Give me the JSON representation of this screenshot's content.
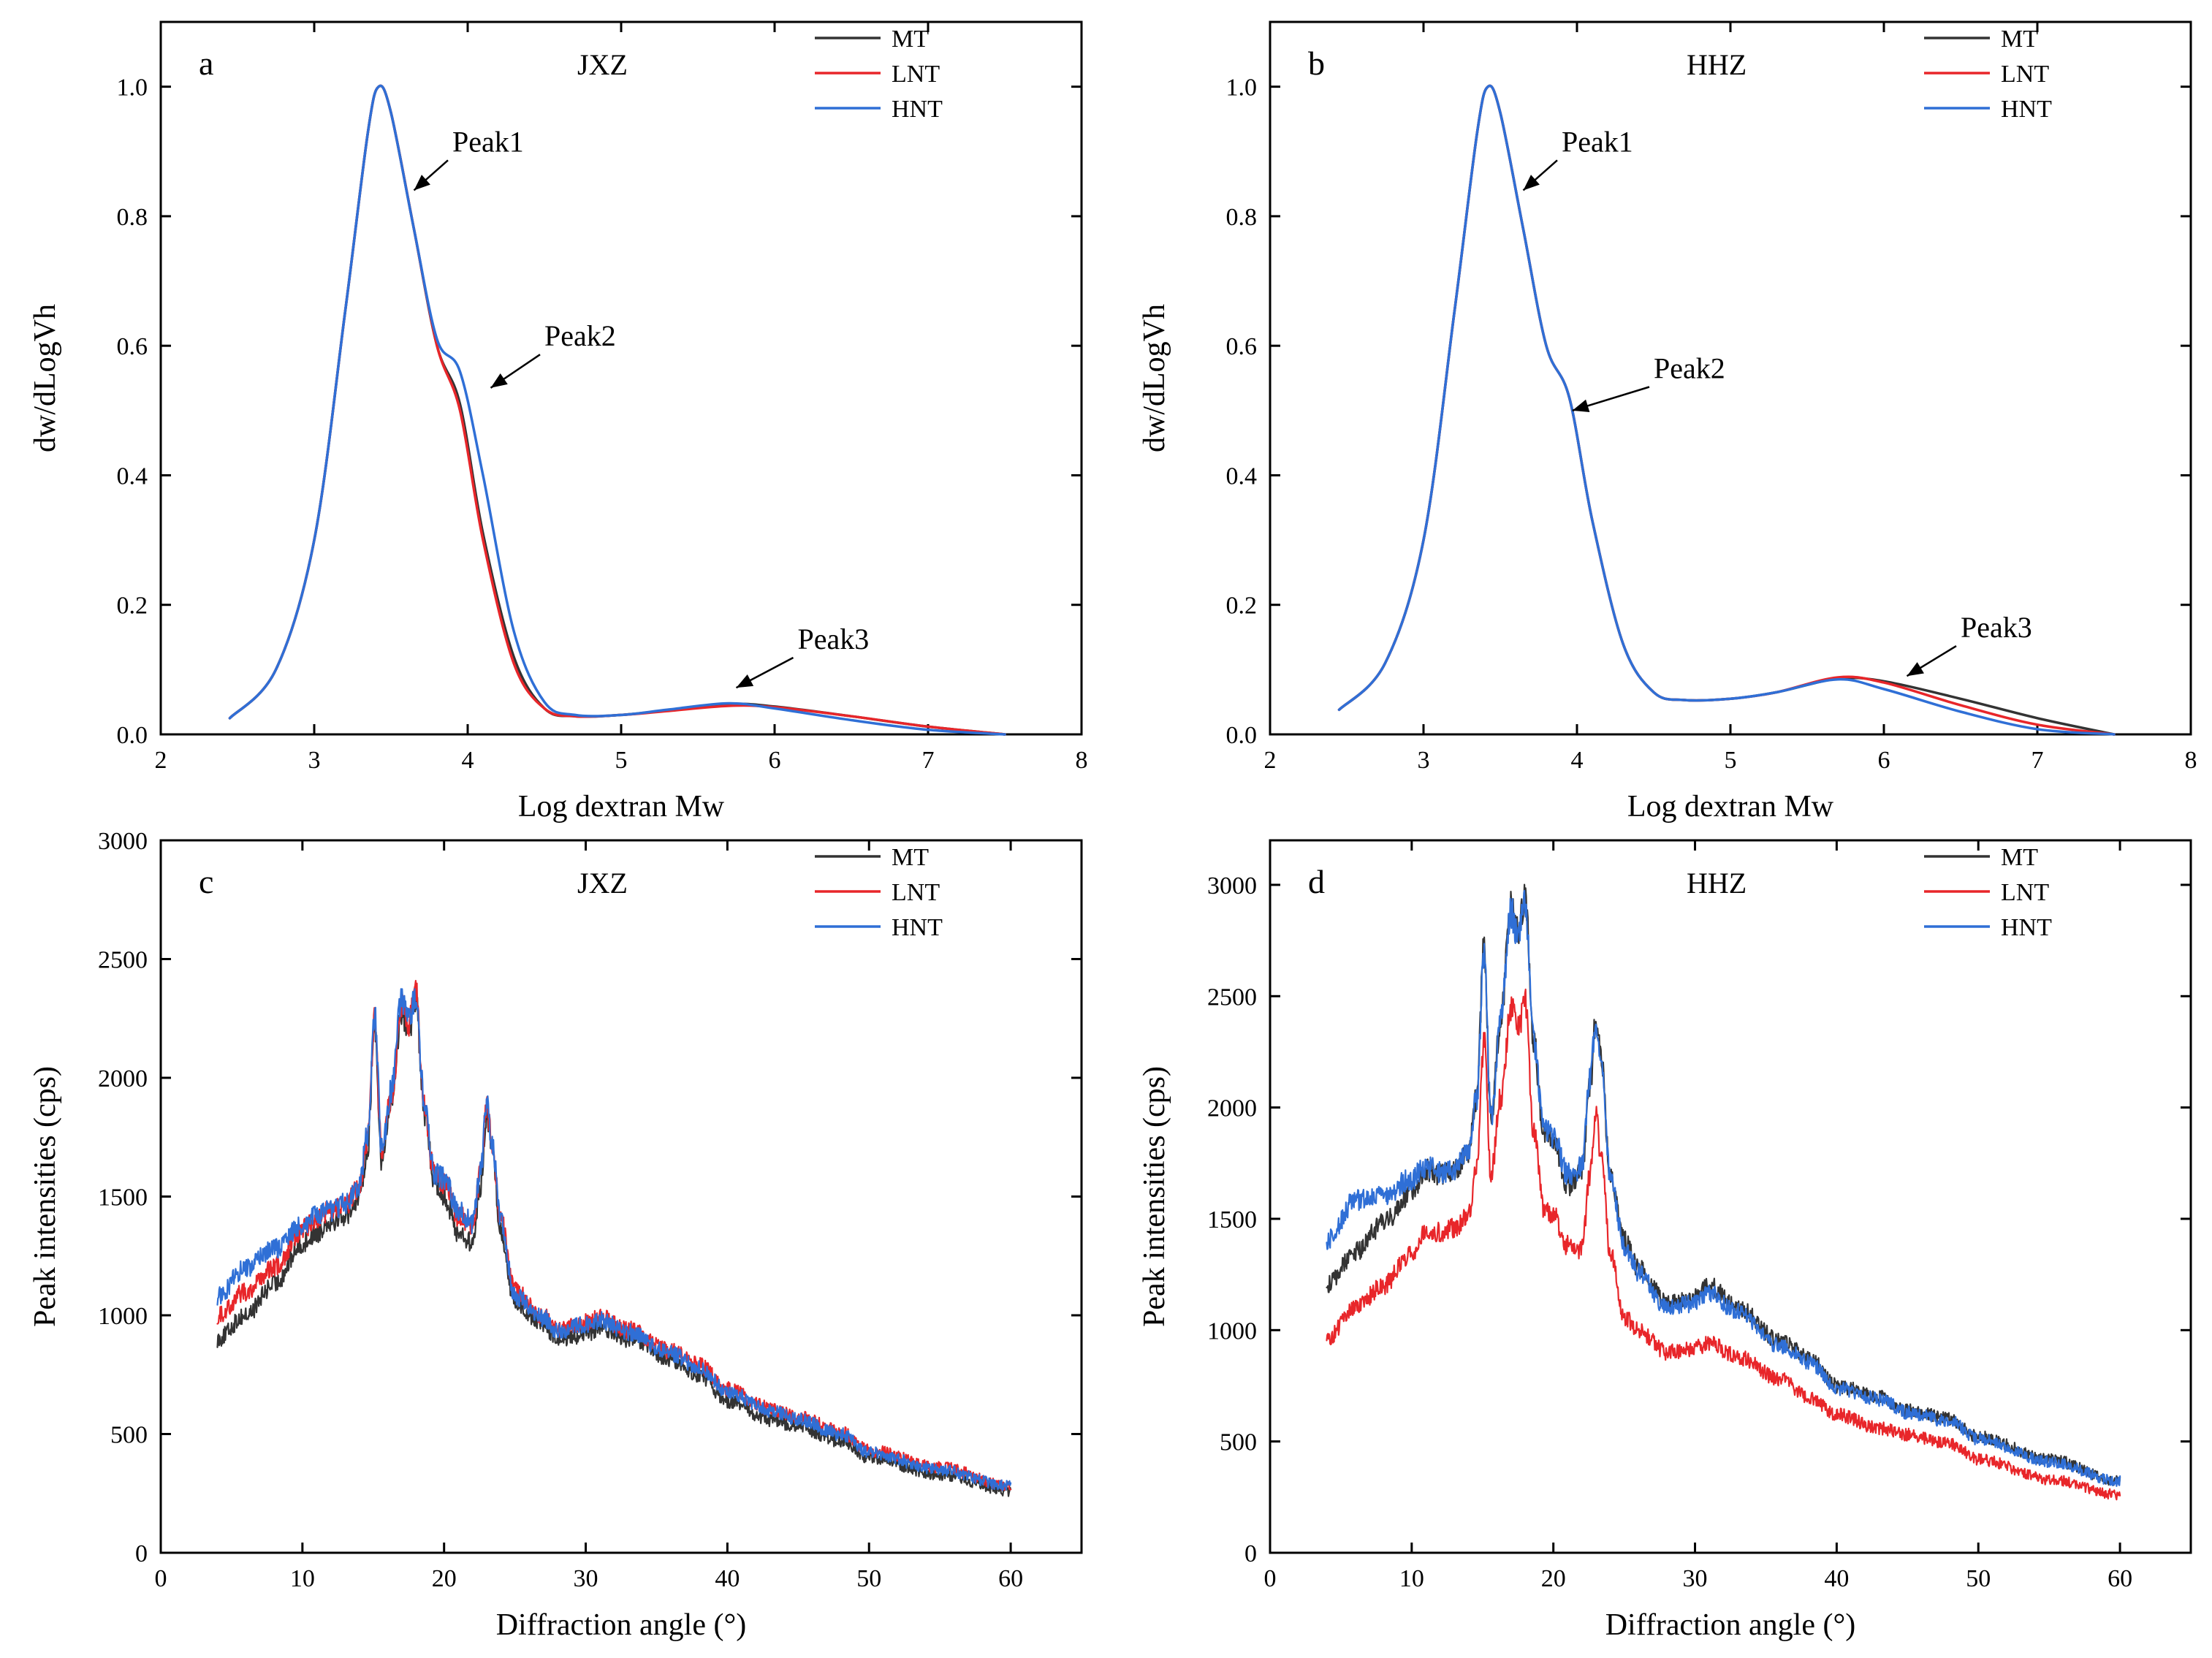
{
  "figure": {
    "description_colors": {
      "MT": "#333333",
      "LNT": "#e8262a",
      "HNT": "#2f6fd6"
    }
  },
  "chart_data": [
    {
      "id": "a",
      "type": "line",
      "panel_label": "a",
      "title": "JXZ",
      "xlabel": "Log dextran Mw",
      "ylabel": "dw/dLogVh",
      "xlim": [
        2,
        8
      ],
      "ylim": [
        0,
        1.1
      ],
      "xticks": [
        "2",
        "3",
        "4",
        "5",
        "6",
        "7",
        "8"
      ],
      "yticks": [
        "0.0",
        "0.2",
        "0.4",
        "0.6",
        "0.8",
        "1.0"
      ],
      "legend_position": "top-right",
      "series": [
        {
          "name": "MT",
          "color": "#333333",
          "x": [
            2.45,
            2.75,
            3.0,
            3.2,
            3.35,
            3.42,
            3.5,
            3.65,
            3.8,
            3.95,
            4.1,
            4.3,
            4.5,
            4.7,
            5.0,
            5.3,
            5.7,
            6.0,
            6.5,
            7.0,
            7.5
          ],
          "y": [
            0.025,
            0.1,
            0.3,
            0.65,
            0.93,
            1.0,
            0.96,
            0.78,
            0.6,
            0.51,
            0.31,
            0.12,
            0.04,
            0.028,
            0.03,
            0.037,
            0.047,
            0.043,
            0.028,
            0.012,
            0.0
          ]
        },
        {
          "name": "LNT",
          "color": "#e8262a",
          "x": [
            2.45,
            2.75,
            3.0,
            3.2,
            3.35,
            3.42,
            3.5,
            3.65,
            3.8,
            3.95,
            4.1,
            4.3,
            4.5,
            4.7,
            5.0,
            5.3,
            5.7,
            6.0,
            6.5,
            7.0,
            7.5
          ],
          "y": [
            0.025,
            0.1,
            0.3,
            0.65,
            0.93,
            1.0,
            0.96,
            0.78,
            0.6,
            0.5,
            0.3,
            0.11,
            0.04,
            0.028,
            0.03,
            0.036,
            0.044,
            0.042,
            0.028,
            0.012,
            0.0
          ]
        },
        {
          "name": "HNT",
          "color": "#2f6fd6",
          "x": [
            2.45,
            2.75,
            3.0,
            3.2,
            3.35,
            3.42,
            3.5,
            3.65,
            3.8,
            3.95,
            4.1,
            4.3,
            4.5,
            4.7,
            5.0,
            5.3,
            5.7,
            6.0,
            6.5,
            7.0,
            7.5
          ],
          "y": [
            0.025,
            0.1,
            0.3,
            0.65,
            0.93,
            1.0,
            0.96,
            0.78,
            0.61,
            0.56,
            0.4,
            0.16,
            0.05,
            0.03,
            0.03,
            0.038,
            0.048,
            0.04,
            0.022,
            0.007,
            0.0
          ]
        }
      ],
      "annotations": [
        {
          "text": "Peak1",
          "x": 3.9,
          "y": 0.9,
          "target_x": 3.65,
          "target_y": 0.84
        },
        {
          "text": "Peak2",
          "x": 4.5,
          "y": 0.6,
          "target_x": 4.15,
          "target_y": 0.535
        },
        {
          "text": "Peak3",
          "x": 6.15,
          "y": 0.132,
          "target_x": 5.75,
          "target_y": 0.072
        }
      ]
    },
    {
      "id": "b",
      "type": "line",
      "panel_label": "b",
      "title": "HHZ",
      "xlabel": "Log dextran Mw",
      "ylabel": "dw/dLogVh",
      "xlim": [
        2,
        8
      ],
      "ylim": [
        0,
        1.1
      ],
      "xticks": [
        "2",
        "3",
        "4",
        "5",
        "6",
        "7",
        "8"
      ],
      "yticks": [
        "0.0",
        "0.2",
        "0.4",
        "0.6",
        "0.8",
        "1.0"
      ],
      "legend_position": "top-right",
      "series": [
        {
          "name": "MT",
          "color": "#333333",
          "x": [
            2.45,
            2.75,
            3.0,
            3.2,
            3.35,
            3.42,
            3.5,
            3.65,
            3.8,
            3.95,
            4.1,
            4.3,
            4.5,
            4.7,
            5.0,
            5.3,
            5.7,
            6.0,
            6.5,
            7.0,
            7.5
          ],
          "y": [
            0.038,
            0.11,
            0.3,
            0.65,
            0.93,
            1.0,
            0.96,
            0.78,
            0.6,
            0.52,
            0.33,
            0.14,
            0.065,
            0.053,
            0.055,
            0.065,
            0.086,
            0.082,
            0.055,
            0.025,
            0.0
          ]
        },
        {
          "name": "LNT",
          "color": "#e8262a",
          "x": [
            2.45,
            2.75,
            3.0,
            3.2,
            3.35,
            3.42,
            3.5,
            3.65,
            3.8,
            3.95,
            4.1,
            4.3,
            4.5,
            4.7,
            5.0,
            5.3,
            5.7,
            6.0,
            6.5,
            7.0,
            7.5
          ],
          "y": [
            0.038,
            0.11,
            0.3,
            0.65,
            0.93,
            1.0,
            0.96,
            0.78,
            0.6,
            0.52,
            0.33,
            0.14,
            0.065,
            0.053,
            0.055,
            0.065,
            0.088,
            0.08,
            0.045,
            0.015,
            0.0
          ]
        },
        {
          "name": "HNT",
          "color": "#2f6fd6",
          "x": [
            2.45,
            2.75,
            3.0,
            3.2,
            3.35,
            3.42,
            3.5,
            3.65,
            3.8,
            3.95,
            4.1,
            4.3,
            4.5,
            4.7,
            5.0,
            5.3,
            5.7,
            6.0,
            6.5,
            7.0,
            7.5
          ],
          "y": [
            0.038,
            0.11,
            0.3,
            0.65,
            0.93,
            1.0,
            0.96,
            0.78,
            0.6,
            0.52,
            0.33,
            0.14,
            0.065,
            0.053,
            0.055,
            0.065,
            0.085,
            0.07,
            0.035,
            0.008,
            0.0
          ]
        }
      ],
      "annotations": [
        {
          "text": "Peak1",
          "x": 3.9,
          "y": 0.9,
          "target_x": 3.65,
          "target_y": 0.84
        },
        {
          "text": "Peak2",
          "x": 4.5,
          "y": 0.55,
          "target_x": 3.97,
          "target_y": 0.5
        },
        {
          "text": "Peak3",
          "x": 6.5,
          "y": 0.15,
          "target_x": 6.15,
          "target_y": 0.09
        }
      ]
    },
    {
      "id": "c",
      "type": "line",
      "panel_label": "c",
      "title": "JXZ",
      "xlabel": "Diffraction angle (°)",
      "ylabel": "Peak intensities (cps)",
      "xlim": [
        0,
        65
      ],
      "ylim": [
        0,
        3000
      ],
      "xticks": [
        "0",
        "10",
        "20",
        "30",
        "40",
        "50",
        "60"
      ],
      "yticks": [
        "0",
        "500",
        "1000",
        "1500",
        "2000",
        "2500",
        "3000"
      ],
      "legend_position": "top-right",
      "series": [
        {
          "name": "MT",
          "color": "#333333",
          "x": [
            4,
            6,
            8,
            10,
            11,
            12,
            13,
            14,
            14.6,
            15.1,
            15.6,
            16.3,
            17,
            17.5,
            18,
            18.6,
            19.3,
            20,
            21,
            22,
            22.6,
            23,
            23.4,
            24,
            25,
            27,
            28,
            30,
            31,
            33,
            36,
            38,
            40,
            43,
            45,
            48,
            50,
            55,
            60
          ],
          "y": [
            900,
            1000,
            1130,
            1300,
            1350,
            1400,
            1420,
            1500,
            1700,
            2230,
            1650,
            1900,
            2280,
            2200,
            2330,
            1850,
            1570,
            1500,
            1350,
            1300,
            1550,
            1850,
            1700,
            1350,
            1050,
            960,
            900,
            920,
            950,
            900,
            810,
            750,
            640,
            560,
            530,
            470,
            400,
            330,
            260
          ]
        },
        {
          "name": "LNT",
          "color": "#e8262a",
          "x": [
            4,
            6,
            8,
            10,
            11,
            12,
            13,
            14,
            14.6,
            15.1,
            15.6,
            16.3,
            17,
            17.5,
            18,
            18.6,
            19.3,
            20,
            21,
            22,
            22.6,
            23,
            23.4,
            24,
            25,
            27,
            28,
            30,
            31,
            33,
            36,
            38,
            40,
            43,
            45,
            48,
            50,
            55,
            60
          ],
          "y": [
            1000,
            1100,
            1200,
            1360,
            1410,
            1440,
            1460,
            1530,
            1740,
            2250,
            1690,
            1930,
            2300,
            2220,
            2380,
            1890,
            1590,
            1560,
            1420,
            1380,
            1600,
            1890,
            1720,
            1400,
            1100,
            1000,
            940,
            970,
            990,
            940,
            850,
            790,
            690,
            610,
            570,
            510,
            430,
            360,
            280
          ]
        },
        {
          "name": "HNT",
          "color": "#2f6fd6",
          "x": [
            4,
            6,
            8,
            10,
            11,
            12,
            13,
            14,
            14.6,
            15.1,
            15.6,
            16.3,
            17,
            17.5,
            18,
            18.6,
            19.3,
            20,
            21,
            22,
            22.6,
            23,
            23.4,
            24,
            25,
            27,
            28,
            30,
            31,
            33,
            36,
            38,
            40,
            43,
            45,
            48,
            50,
            55,
            60
          ],
          "y": [
            1080,
            1200,
            1280,
            1380,
            1420,
            1440,
            1470,
            1540,
            1760,
            2270,
            1700,
            1950,
            2330,
            2240,
            2350,
            1900,
            1600,
            1580,
            1440,
            1390,
            1610,
            1900,
            1730,
            1400,
            1080,
            990,
            930,
            960,
            980,
            930,
            840,
            780,
            680,
            600,
            560,
            500,
            420,
            350,
            280
          ]
        }
      ]
    },
    {
      "id": "d",
      "type": "line",
      "panel_label": "d",
      "title": "HHZ",
      "xlabel": "Diffraction angle (°)",
      "ylabel": "Peak intensities (cps)",
      "xlim": [
        0,
        65
      ],
      "ylim": [
        0,
        3200
      ],
      "xticks": [
        "0",
        "10",
        "20",
        "30",
        "40",
        "50",
        "60"
      ],
      "yticks": [
        "0",
        "500",
        "1000",
        "1500",
        "2000",
        "2500",
        "3000"
      ],
      "legend_position": "top-right",
      "series": [
        {
          "name": "MT",
          "color": "#333333",
          "x": [
            4,
            6,
            8,
            10,
            11,
            12,
            13,
            14,
            14.6,
            15.1,
            15.6,
            16.3,
            17,
            17.5,
            18,
            18.6,
            19.3,
            20,
            21,
            22,
            22.6,
            23,
            23.4,
            24,
            25,
            26,
            28,
            30,
            31,
            33,
            36,
            38,
            40,
            43,
            45,
            48,
            50,
            55,
            60
          ],
          "y": [
            1200,
            1350,
            1480,
            1620,
            1720,
            1700,
            1720,
            1800,
            2050,
            2720,
            1950,
            2400,
            2900,
            2800,
            2950,
            2300,
            1900,
            1850,
            1650,
            1700,
            2100,
            2400,
            2200,
            1700,
            1400,
            1280,
            1130,
            1150,
            1200,
            1100,
            950,
            880,
            750,
            700,
            640,
            600,
            520,
            420,
            320
          ]
        },
        {
          "name": "LNT",
          "color": "#e8262a",
          "x": [
            4,
            6,
            8,
            10,
            11,
            12,
            13,
            14,
            14.6,
            15.1,
            15.6,
            16.3,
            17,
            17.5,
            18,
            18.6,
            19.3,
            20,
            21,
            22,
            22.6,
            23,
            23.4,
            24,
            25,
            26,
            28,
            30,
            31,
            33,
            36,
            38,
            40,
            43,
            45,
            48,
            50,
            55,
            60
          ],
          "y": [
            960,
            1100,
            1200,
            1350,
            1450,
            1440,
            1460,
            1520,
            1750,
            2300,
            1700,
            2050,
            2450,
            2350,
            2480,
            1900,
            1550,
            1520,
            1380,
            1360,
            1700,
            1980,
            1750,
            1350,
            1060,
            1000,
            900,
            920,
            940,
            880,
            780,
            700,
            620,
            560,
            530,
            490,
            420,
            330,
            260
          ]
        },
        {
          "name": "HNT",
          "color": "#2f6fd6",
          "x": [
            4,
            6,
            8,
            10,
            11,
            12,
            13,
            14,
            14.6,
            15.1,
            15.6,
            16.3,
            17,
            17.5,
            18,
            18.6,
            19.3,
            20,
            21,
            22,
            22.6,
            23,
            23.4,
            24,
            25,
            26,
            28,
            30,
            31,
            33,
            36,
            38,
            40,
            43,
            45,
            48,
            50,
            55,
            60
          ],
          "y": [
            1400,
            1580,
            1600,
            1680,
            1740,
            1710,
            1720,
            1800,
            2050,
            2700,
            1950,
            2400,
            2880,
            2780,
            2930,
            2300,
            1920,
            1870,
            1700,
            1730,
            2120,
            2400,
            2200,
            1700,
            1380,
            1260,
            1100,
            1120,
            1170,
            1080,
            930,
            860,
            740,
            690,
            630,
            590,
            510,
            410,
            320
          ]
        }
      ]
    }
  ]
}
